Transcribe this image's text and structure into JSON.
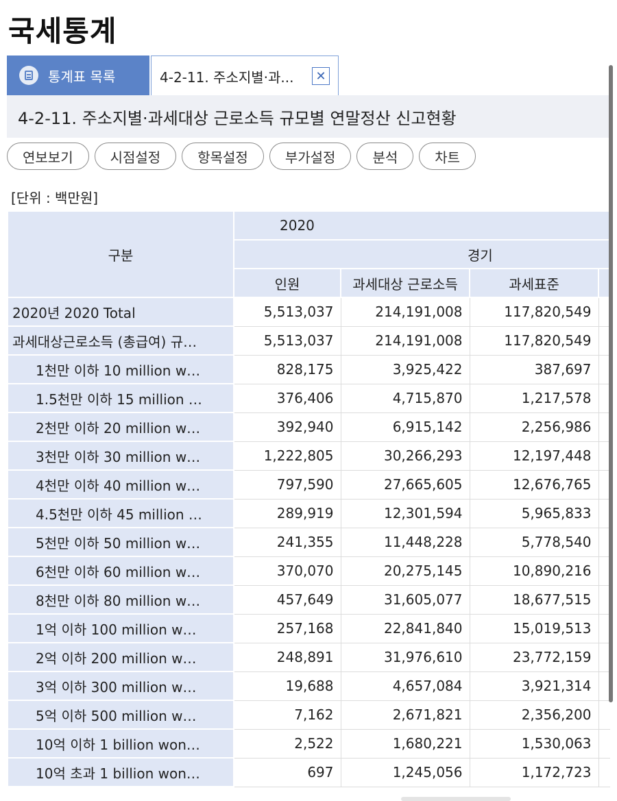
{
  "page_title": "국세통계",
  "tabs": {
    "list_label": "통계표 목록",
    "active_label": "4-2-11. 주소지별·과...",
    "close_symbol": "✕"
  },
  "table_title": "4-2-11. 주소지별·과세대상 근로소득 규모별 연말정산 신고현황",
  "toolbar": [
    "연보보기",
    "시점설정",
    "항목설정",
    "부가설정",
    "분석",
    "차트"
  ],
  "unit": "[단위 : 백만원]",
  "header": {
    "row_label": "구분",
    "year": "2020",
    "region": "경기",
    "columns": [
      "인원",
      "과세대상 근로소득",
      "과세표준"
    ]
  },
  "rows": [
    {
      "label": "2020년 2020 Total",
      "indent": false,
      "values": [
        "5,513,037",
        "214,191,008",
        "117,820,549"
      ]
    },
    {
      "label": "과세대상근로소득 (총급여) 규…",
      "indent": false,
      "values": [
        "5,513,037",
        "214,191,008",
        "117,820,549"
      ]
    },
    {
      "label": "1천만 이하 10 million w…",
      "indent": true,
      "values": [
        "828,175",
        "3,925,422",
        "387,697"
      ]
    },
    {
      "label": "1.5천만 이하 15 million …",
      "indent": true,
      "values": [
        "376,406",
        "4,715,870",
        "1,217,578"
      ]
    },
    {
      "label": "2천만 이하 20 million w…",
      "indent": true,
      "values": [
        "392,940",
        "6,915,142",
        "2,256,986"
      ]
    },
    {
      "label": "3천만 이하 30 million w…",
      "indent": true,
      "values": [
        "1,222,805",
        "30,266,293",
        "12,197,448"
      ]
    },
    {
      "label": "4천만 이하 40 million w…",
      "indent": true,
      "values": [
        "797,590",
        "27,665,605",
        "12,676,765"
      ]
    },
    {
      "label": "4.5천만 이하 45 million …",
      "indent": true,
      "values": [
        "289,919",
        "12,301,594",
        "5,965,833"
      ]
    },
    {
      "label": "5천만 이하 50 million w…",
      "indent": true,
      "values": [
        "241,355",
        "11,448,228",
        "5,778,540"
      ]
    },
    {
      "label": "6천만 이하 60 million w…",
      "indent": true,
      "values": [
        "370,070",
        "20,275,145",
        "10,890,216"
      ]
    },
    {
      "label": "8천만 이하 80 million w…",
      "indent": true,
      "values": [
        "457,649",
        "31,605,077",
        "18,677,515"
      ]
    },
    {
      "label": "1억 이하 100 million w…",
      "indent": true,
      "values": [
        "257,168",
        "22,841,840",
        "15,019,513"
      ]
    },
    {
      "label": "2억 이하 200 million w…",
      "indent": true,
      "values": [
        "248,891",
        "31,976,610",
        "23,772,159"
      ]
    },
    {
      "label": "3억 이하 300 million w…",
      "indent": true,
      "values": [
        "19,688",
        "4,657,084",
        "3,921,314"
      ]
    },
    {
      "label": "5억 이하 500 million w…",
      "indent": true,
      "values": [
        "7,162",
        "2,671,821",
        "2,356,200"
      ]
    },
    {
      "label": "10억 이하 1 billion won…",
      "indent": true,
      "values": [
        "2,522",
        "1,680,221",
        "1,530,063"
      ]
    },
    {
      "label": "10억 초과 1 billion won…",
      "indent": true,
      "values": [
        "697",
        "1,245,056",
        "1,172,723"
      ]
    }
  ]
}
